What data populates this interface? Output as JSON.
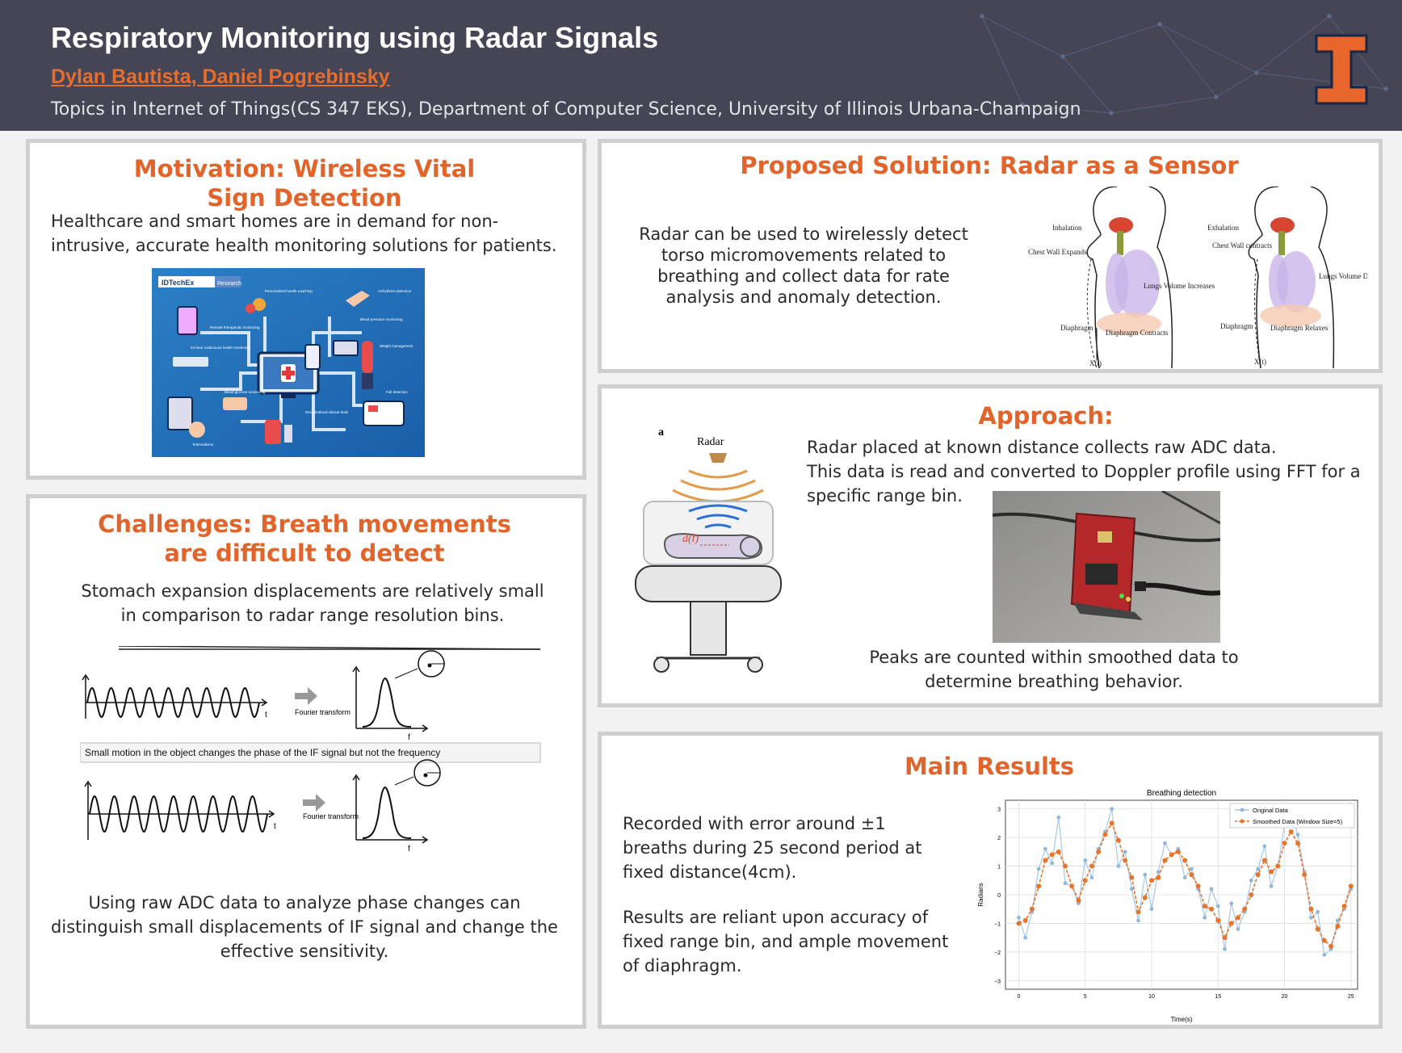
{
  "header": {
    "title": "Respiratory Monitoring using Radar Signals",
    "authors": "Dylan Bautista, Daniel Pogrebinsky",
    "affiliation": "Topics in Internet of Things(CS 347 EKS), Department of Computer Science, University of Illinois Urbana-Champaign",
    "logo_letter": "I",
    "colors": {
      "header_bg": "#454556",
      "accent": "#e3642b"
    }
  },
  "motivation": {
    "title": "Motivation: Wireless Vital Sign Detection",
    "text": "Healthcare and smart homes are in demand for non-intrusive, accurate health monitoring solutions for patients.",
    "figure": {
      "brand": "IDTechEx",
      "brand_tag": "Research",
      "labels": [
        "Personalized health coaching",
        "Arrhythmia detection",
        "Remote therapeutic monitoring",
        "Blood pressure monitoring",
        "24-hour continuous health monitoring",
        "Weight management",
        "Fall detection",
        "Blood glucose monitoring",
        "Decentralized clinical trials",
        "Telemedicine"
      ]
    }
  },
  "challenges": {
    "title": "Challenges: Breath movements are difficult to detect",
    "text1": "Stomach expansion displacements are relatively small in comparison to radar range resolution bins.",
    "text2": "Using raw ADC data to analyze phase changes can distinguish small displacements of IF signal and change the effective sensitivity.",
    "figure": {
      "arrow_label": "Fourier transform",
      "t_label": "t",
      "f_label": "f",
      "caption": "Small motion in the object changes the phase of the IF signal but not the frequency"
    }
  },
  "solution": {
    "title": "Proposed Solution: Radar as a Sensor",
    "text": "Radar can be used to wirelessly detect torso micromovements related to breathing and collect data for rate analysis and anomaly detection.",
    "figure": {
      "left": {
        "phase": "Inhalation",
        "chest": "Chest Wall Expands",
        "lungs": "Lungs Volume Increases",
        "diaphragm": "Diaphragm",
        "diaphragm_state": "Diaphragm Contracts",
        "x": "X(t)"
      },
      "right": {
        "phase": "Exhalation",
        "chest": "Chest Wall contracts",
        "lungs": "Lungs Volume Decreases",
        "diaphragm": "Diaphragm",
        "diaphragm_state": "Diaphragm Relaxes",
        "x": "X(t)"
      }
    }
  },
  "approach": {
    "title": "Approach:",
    "text1": "Radar placed at known distance collects raw ADC data.",
    "text2": "This data is read and converted to Doppler profile using FFT for a specific range bin.",
    "text3": "Peaks are counted within smoothed data to determine breathing behavior.",
    "figure": {
      "panel_letter": "a",
      "radar_label": "Radar",
      "distance_label": "d(t)"
    }
  },
  "results": {
    "title": "Main Results",
    "text1": "Recorded with error around ±1 breaths during 25 second period at fixed distance(4cm).",
    "text2": "Results are reliant upon accuracy of fixed range bin, and ample movement of diaphragm."
  },
  "chart_data": {
    "type": "line",
    "title": "Breathing detection",
    "xlabel": "Time(s)",
    "ylabel": "Radians",
    "xlim": [
      -1,
      25.5
    ],
    "ylim": [
      -3.3,
      3.3
    ],
    "xticks": [
      0,
      5,
      10,
      15,
      20,
      25
    ],
    "yticks": [
      -3,
      -2,
      -1,
      0,
      1,
      2,
      3
    ],
    "grid": true,
    "legend": "top-right",
    "series": [
      {
        "name": "Original Data",
        "color": "#8fb8de",
        "x": [
          0,
          0.5,
          1,
          1.5,
          2,
          2.5,
          3,
          3.5,
          4,
          4.5,
          5,
          5.5,
          6,
          6.5,
          7,
          7.5,
          8,
          8.5,
          9,
          9.5,
          10,
          10.5,
          11,
          11.5,
          12,
          12.5,
          13,
          13.5,
          14,
          14.5,
          15,
          15.5,
          16,
          16.5,
          17,
          17.5,
          18,
          18.5,
          19,
          19.5,
          20,
          20.5,
          21,
          21.5,
          22,
          22.5,
          23,
          23.5,
          24,
          24.5,
          25
        ],
        "values": [
          -0.8,
          -1.5,
          -0.6,
          0.9,
          1.6,
          1.1,
          2.7,
          0.4,
          0.3,
          -0.3,
          1.2,
          0.6,
          1.6,
          2.2,
          3.0,
          1.0,
          1.5,
          0.2,
          -0.9,
          0.7,
          -0.5,
          0.8,
          1.8,
          1.4,
          1.6,
          0.6,
          0.9,
          0.2,
          -0.8,
          0.2,
          -0.4,
          -1.9,
          -0.3,
          -1.2,
          -0.6,
          0.5,
          0.9,
          1.7,
          0.3,
          1.0,
          2.4,
          2.9,
          2.1,
          0.8,
          -0.8,
          -0.6,
          -2.1,
          -1.9,
          -0.9,
          -0.5,
          0.2
        ]
      },
      {
        "name": "Smoothed Data (Window Size=5)",
        "color": "#e8742b",
        "x": [
          0,
          0.5,
          1,
          1.5,
          2,
          2.5,
          3,
          3.5,
          4,
          4.5,
          5,
          5.5,
          6,
          6.5,
          7,
          7.5,
          8,
          8.5,
          9,
          9.5,
          10,
          10.5,
          11,
          11.5,
          12,
          12.5,
          13,
          13.5,
          14,
          14.5,
          15,
          15.5,
          16,
          16.5,
          17,
          17.5,
          18,
          18.5,
          19,
          19.5,
          20,
          20.5,
          21,
          21.5,
          22,
          22.5,
          23,
          23.5,
          24,
          24.5,
          25
        ],
        "values": [
          -1.0,
          -0.9,
          -0.5,
          0.3,
          1.2,
          1.4,
          1.5,
          1.0,
          0.3,
          -0.2,
          0.5,
          1.0,
          1.5,
          2.1,
          2.5,
          1.9,
          1.2,
          0.6,
          -0.6,
          -0.1,
          0.5,
          0.6,
          1.2,
          1.4,
          1.5,
          1.2,
          0.7,
          0.3,
          -0.4,
          -0.5,
          -0.9,
          -1.5,
          -1.0,
          -0.8,
          -0.5,
          0.0,
          0.7,
          1.2,
          0.8,
          1.0,
          1.8,
          2.2,
          1.8,
          0.7,
          -0.5,
          -1.2,
          -1.6,
          -1.8,
          -1.1,
          -0.4,
          0.3
        ]
      }
    ]
  }
}
